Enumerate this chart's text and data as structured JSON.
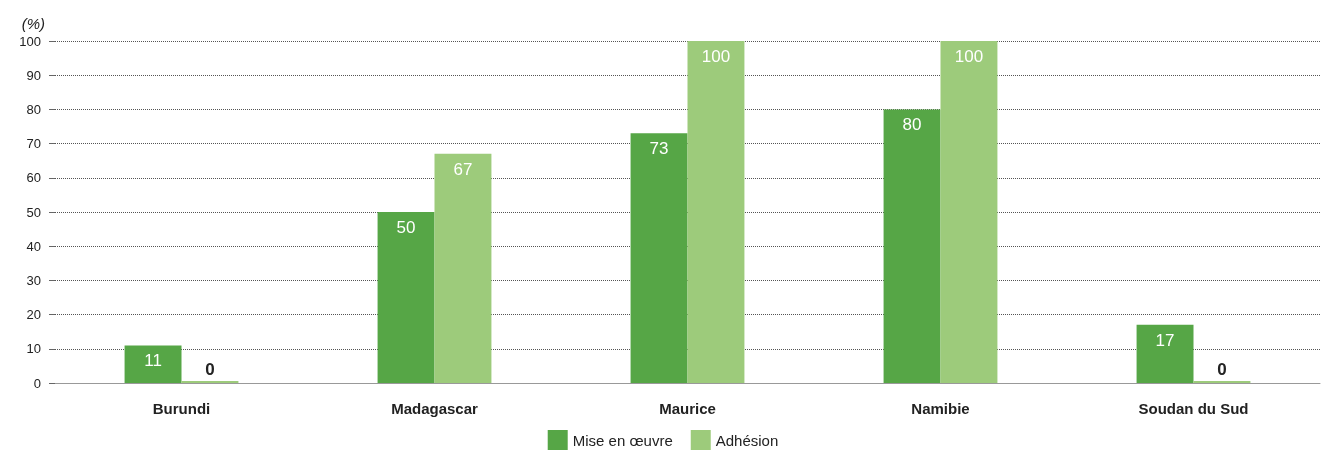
{
  "chart_data": {
    "type": "bar",
    "ylabel": "(%)",
    "categories": [
      "Burundi",
      "Madagascar",
      "Maurice",
      "Namibie",
      "Soudan du Sud"
    ],
    "series": [
      {
        "name": "Mise en œuvre",
        "color": "#56a646",
        "values": [
          11,
          50,
          73,
          80,
          17
        ]
      },
      {
        "name": "Adhésion",
        "color": "#9dcb7b",
        "values": [
          0,
          67,
          100,
          100,
          0
        ]
      }
    ],
    "ylim": [
      0,
      100
    ],
    "yticks": [
      0,
      10,
      20,
      30,
      40,
      50,
      60,
      70,
      80,
      90,
      100
    ],
    "grid": "y",
    "legend": "bottom",
    "data_labels": true
  }
}
